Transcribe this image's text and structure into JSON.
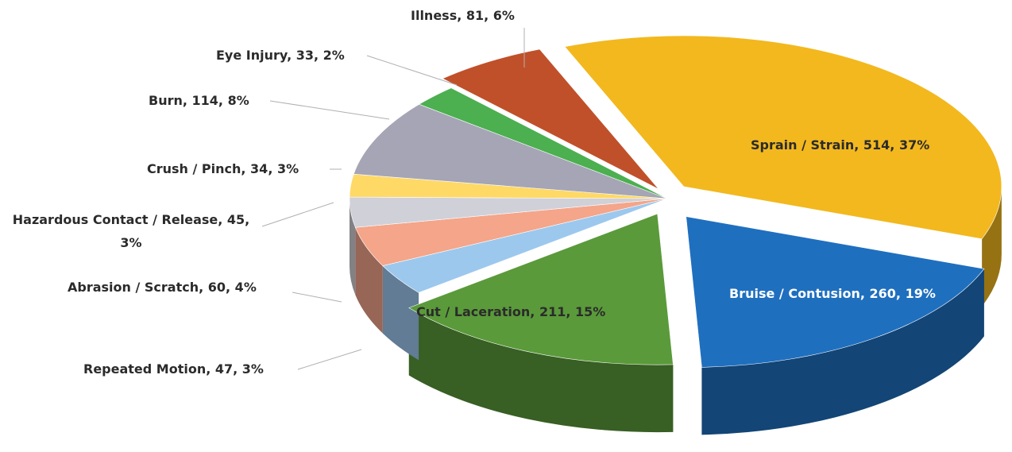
{
  "chart_data": {
    "type": "pie",
    "values": [
      514,
      260,
      211,
      47,
      60,
      45,
      34,
      114,
      33,
      81
    ],
    "value_labels": [
      "Sprain / Strain, 514, 37%",
      "Bruise / Contusion, 260, 19%",
      "Cut / Laceration, 211, 15%",
      "Repeated Motion, 47, 3%",
      "Abrasion / Scratch, 60, 4%",
      "Hazardous Contact / Release, 45, 3%",
      "Crush / Pinch, 34, 3%",
      "Burn, 114, 8%",
      "Eye Injury, 33, 2%",
      "Illness, 81, 6%"
    ],
    "colors": [
      "#f2b81e",
      "#1f6fbf",
      "#5a9a3a",
      "#9cc8ee",
      "#f4a58a",
      "#d0d0d8",
      "#ffd966",
      "#a5a5b5",
      "#4caf50",
      "#c0502a"
    ]
  }
}
